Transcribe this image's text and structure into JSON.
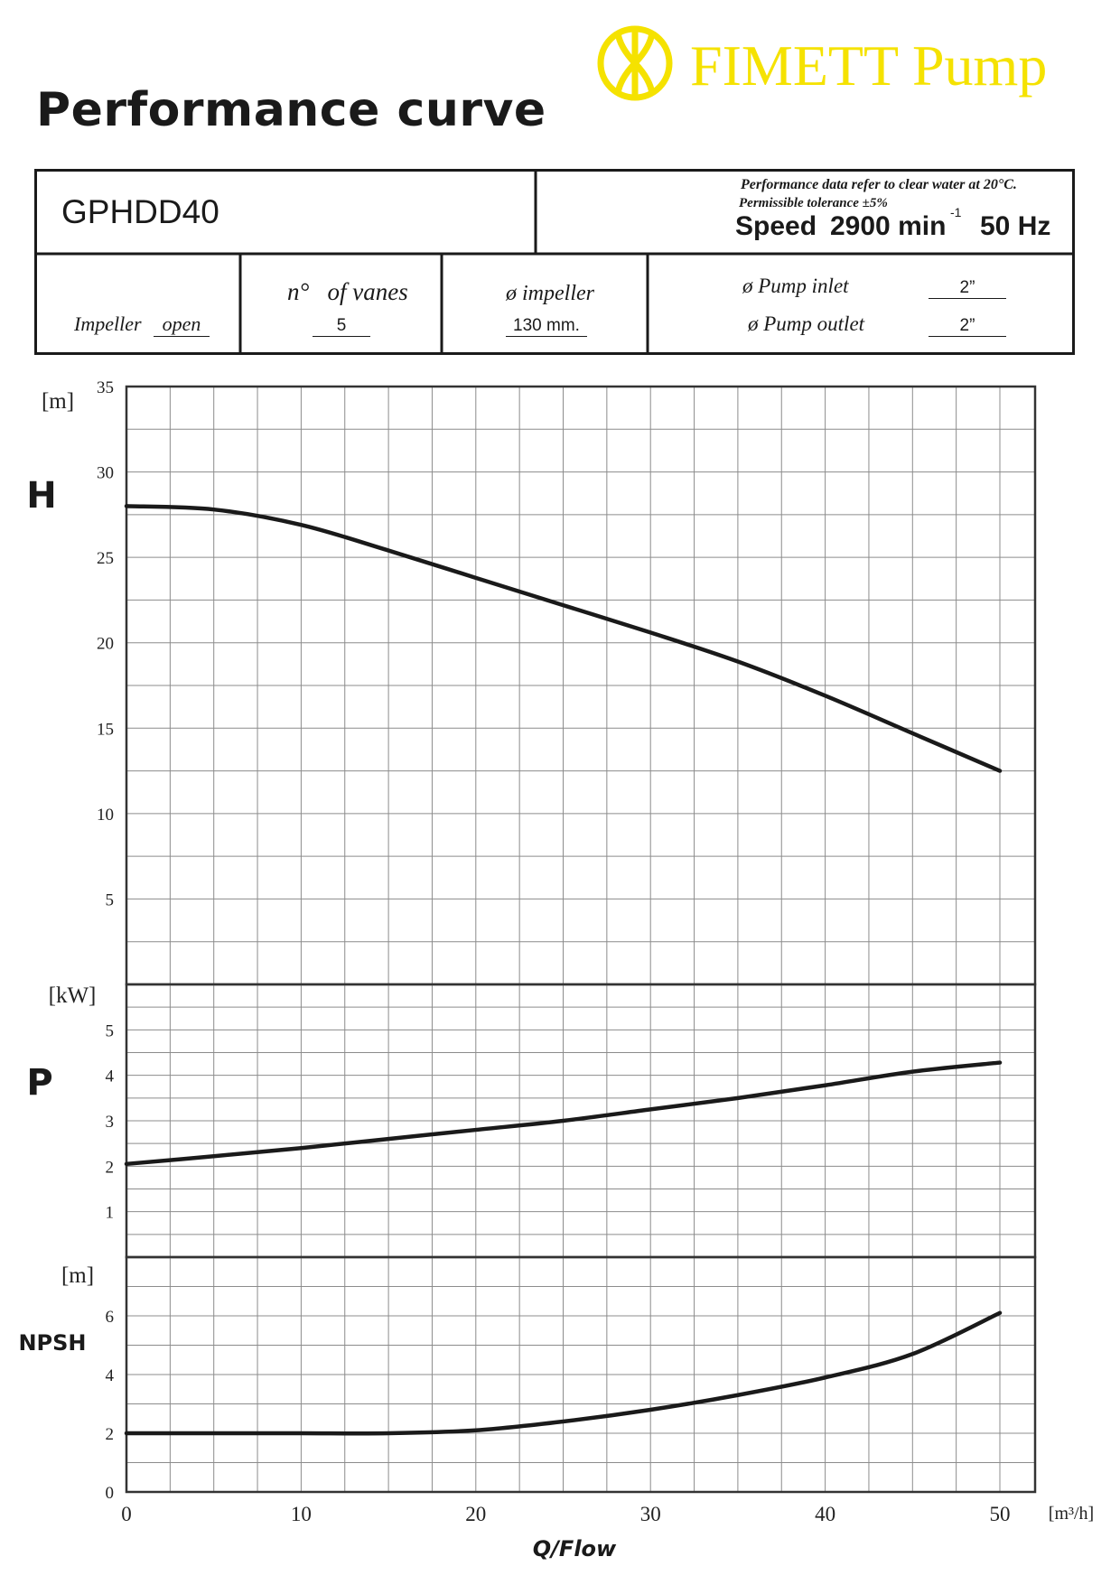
{
  "header": {
    "title": "Performance curve",
    "brand": "FIMETT Pump"
  },
  "specs": {
    "model": "GPHDD40",
    "note_line1": "Performance data refer to clear water at 20°C.",
    "note_line2": "Permissible tolerance ±5%",
    "speed_label": "Speed",
    "speed_value": "2900 min",
    "speed_exp": "-1",
    "frequency": "50 Hz",
    "impeller_label": "Impeller",
    "impeller_value": "open",
    "vanes_label": "n°   of vanes",
    "vanes_value": "5",
    "impeller_diam_label": "ø impeller",
    "impeller_diam_value": "130 mm.",
    "inlet_label": "ø Pump inlet",
    "inlet_value": "2”",
    "outlet_label": "ø Pump outlet",
    "outlet_value": "2”"
  },
  "colors": {
    "brand": "#f5e200",
    "grid": "#8c8c8c",
    "curve": "#1a1a1a"
  },
  "chart_data": {
    "type": "line",
    "xlabel": "Q/Flow",
    "xunit": "[m³/h]",
    "xlim": [
      0,
      50
    ],
    "xticks": [
      0,
      10,
      20,
      30,
      40,
      50
    ],
    "grid": true,
    "panels": [
      {
        "name": "H",
        "unit": "[m]",
        "ylim": [
          0,
          35
        ],
        "yticks": [
          5,
          10,
          15,
          20,
          25,
          30,
          35
        ],
        "series": {
          "x": [
            0,
            5,
            10,
            15,
            20,
            25,
            30,
            35,
            40,
            45,
            50
          ],
          "y": [
            28,
            27.8,
            26.9,
            25.4,
            23.8,
            22.2,
            20.6,
            18.9,
            16.9,
            14.7,
            12.5
          ]
        }
      },
      {
        "name": "P",
        "unit": "[kW]",
        "ylim": [
          0,
          6
        ],
        "yticks": [
          1,
          2,
          3,
          4,
          5
        ],
        "series": {
          "x": [
            0,
            5,
            10,
            15,
            20,
            25,
            30,
            35,
            40,
            45,
            50
          ],
          "y": [
            2.05,
            2.22,
            2.4,
            2.6,
            2.8,
            3.0,
            3.25,
            3.5,
            3.78,
            4.08,
            4.28
          ]
        }
      },
      {
        "name": "NPSH",
        "unit": "[m]",
        "ylim": [
          0,
          8
        ],
        "yticks": [
          0,
          2,
          4,
          6
        ],
        "series": {
          "x": [
            0,
            5,
            10,
            15,
            20,
            25,
            30,
            35,
            40,
            45,
            50
          ],
          "y": [
            2,
            2,
            2,
            2,
            2.1,
            2.4,
            2.8,
            3.3,
            3.9,
            4.7,
            6.1
          ]
        }
      }
    ]
  }
}
